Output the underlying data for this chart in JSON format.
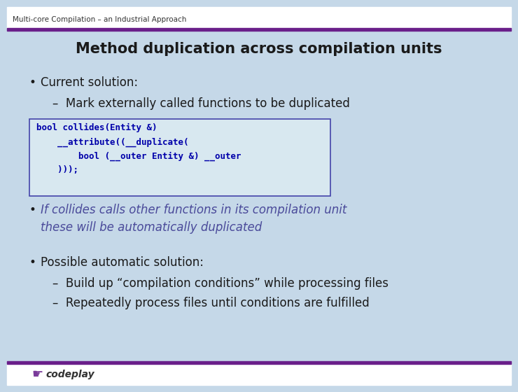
{
  "header_text": "Multi-core Compilation – an Industrial Approach",
  "title": "Method duplication across compilation units",
  "bg_color": "#c5d8e8",
  "header_bg": "#ffffff",
  "header_color": "#333333",
  "title_color": "#1a1a1a",
  "body_color": "#1a1a1a",
  "italic_color": "#4a4a9a",
  "top_bar_color": "#6a1f8a",
  "bottom_bar_color": "#6a1f8a",
  "code_bg": "#d8e8f0",
  "code_border": "#4444aa",
  "code_color": "#0000aa",
  "code_lines": [
    "bool collides(Entity &)",
    "    __attribute((__duplicate(",
    "        bool (__outer Entity &) __outer",
    "    )));"
  ],
  "bullet1_main": "Current solution:",
  "bullet1_sub": "–  Mark externally called functions to be duplicated",
  "bullet2_line1": "If collides calls other functions in its compilation unit",
  "bullet2_line2": "these will be automatically duplicated",
  "bullet3_main": "Possible automatic solution:",
  "bullet3_sub1": "–  Build up “compilation conditions” while processing files",
  "bullet3_sub2": "–  Repeatedly process files until conditions are fulfilled",
  "footer_text": "codeplay"
}
